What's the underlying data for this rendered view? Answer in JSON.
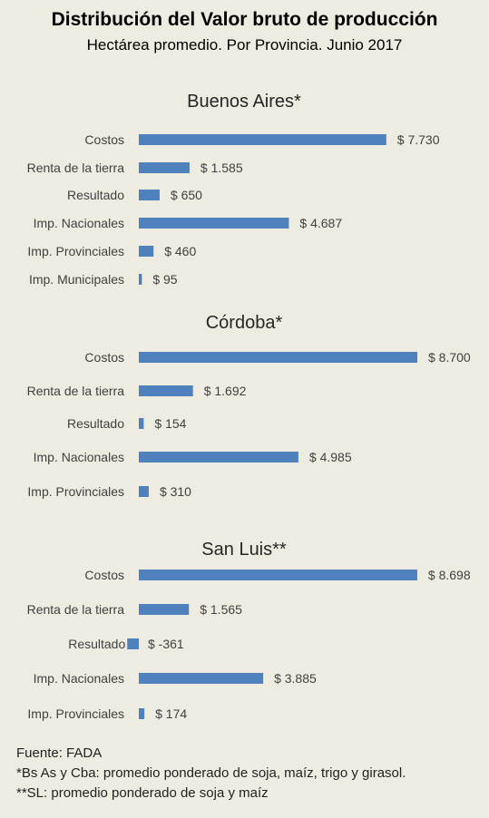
{
  "header": {
    "title": "Distribución del Valor bruto de producción",
    "subtitle": "Hectárea promedio. Por Provincia. Junio 2017"
  },
  "colors": {
    "bar": "#4f81bd",
    "background": "#eeece1",
    "text": "#404040"
  },
  "chart_data": [
    {
      "type": "bar",
      "orientation": "horizontal",
      "title": "Buenos Aires*",
      "categories": [
        "Costos",
        "Renta de la tierra",
        "Resultado",
        "Imp. Nacionales",
        "Imp. Provinciales",
        "Imp. Municipales"
      ],
      "values": [
        7730,
        1585,
        650,
        4687,
        460,
        95
      ],
      "data_labels": [
        "$ 7.730",
        "$ 1.585",
        "$ 650",
        "$ 4.687",
        "$ 460",
        "$ 95"
      ],
      "xlim": [
        -500,
        8700
      ]
    },
    {
      "type": "bar",
      "orientation": "horizontal",
      "title": "Córdoba*",
      "categories": [
        "Costos",
        "Renta de la tierra",
        "Resultado",
        "Imp. Nacionales",
        "Imp. Provinciales"
      ],
      "values": [
        8700,
        1692,
        154,
        4985,
        310
      ],
      "data_labels": [
        "$ 8.700",
        "$ 1.692",
        "$ 154",
        "$ 4.985",
        "$ 310"
      ],
      "xlim": [
        -500,
        8700
      ]
    },
    {
      "type": "bar",
      "orientation": "horizontal",
      "title": "San Luis**",
      "categories": [
        "Costos",
        "Renta de la tierra",
        "Resultado",
        "Imp. Nacionales",
        "Imp. Provinciales"
      ],
      "values": [
        8698,
        1565,
        -361,
        3885,
        174
      ],
      "data_labels": [
        "$ 8.698",
        "$ 1.565",
        "$ -361",
        "$ 3.885",
        "$ 174"
      ],
      "xlim": [
        -500,
        8700
      ]
    }
  ],
  "footer": {
    "source": "Fuente: FADA",
    "note1": "*Bs As y Cba: promedio ponderado de soja, maíz, trigo y girasol.",
    "note2": "**SL: promedio ponderado de soja y maíz"
  }
}
